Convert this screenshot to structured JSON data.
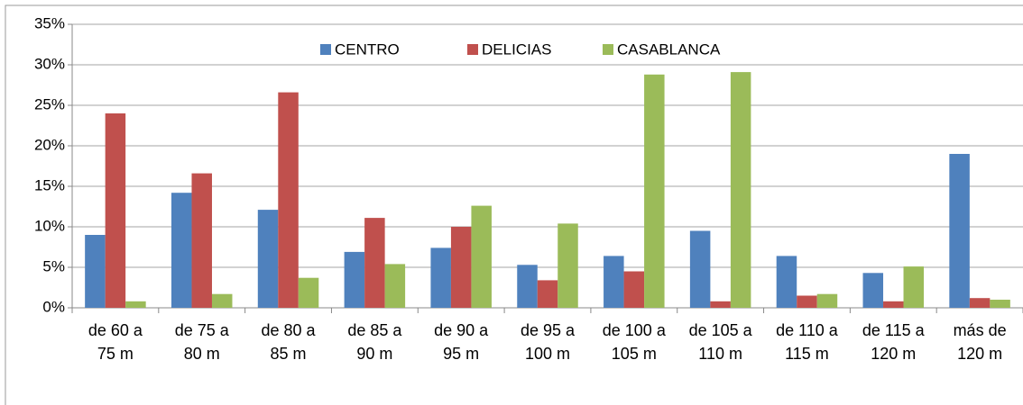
{
  "chart_data": {
    "type": "bar",
    "categories": [
      "de 60 a 75 m",
      "de 75 a 80 m",
      "de 80 a 85 m",
      "de 85 a 90 m",
      "de 90 a 95 m",
      "de 95 a 100 m",
      "de 100 a 105 m",
      "de 105 a 110 m",
      "de 110 a 115 m",
      "de 115 a 120 m",
      "más de 120 m"
    ],
    "series": [
      {
        "name": "CENTRO",
        "color": "#4f81bd",
        "values": [
          9.0,
          14.2,
          12.1,
          6.9,
          7.4,
          5.3,
          6.4,
          9.5,
          6.4,
          4.3,
          19.0
        ]
      },
      {
        "name": "DELICIAS",
        "color": "#c0504d",
        "values": [
          24.0,
          16.6,
          26.6,
          11.1,
          10.0,
          3.4,
          4.5,
          0.8,
          1.5,
          0.8,
          1.2
        ]
      },
      {
        "name": "CASABLANCA",
        "color": "#9bbb59",
        "values": [
          0.8,
          1.7,
          3.7,
          5.4,
          12.6,
          10.4,
          28.8,
          29.1,
          1.7,
          5.1,
          1.0
        ]
      }
    ],
    "ylim": [
      0,
      35
    ],
    "yticks": [
      {
        "value": 0,
        "label": "0%"
      },
      {
        "value": 5,
        "label": "5%"
      },
      {
        "value": 10,
        "label": "10%"
      },
      {
        "value": 15,
        "label": "15%"
      },
      {
        "value": 20,
        "label": "20%"
      },
      {
        "value": 25,
        "label": "25%"
      },
      {
        "value": 30,
        "label": "30%"
      },
      {
        "value": 35,
        "label": "35%"
      }
    ],
    "grid": true,
    "legend": "top"
  }
}
